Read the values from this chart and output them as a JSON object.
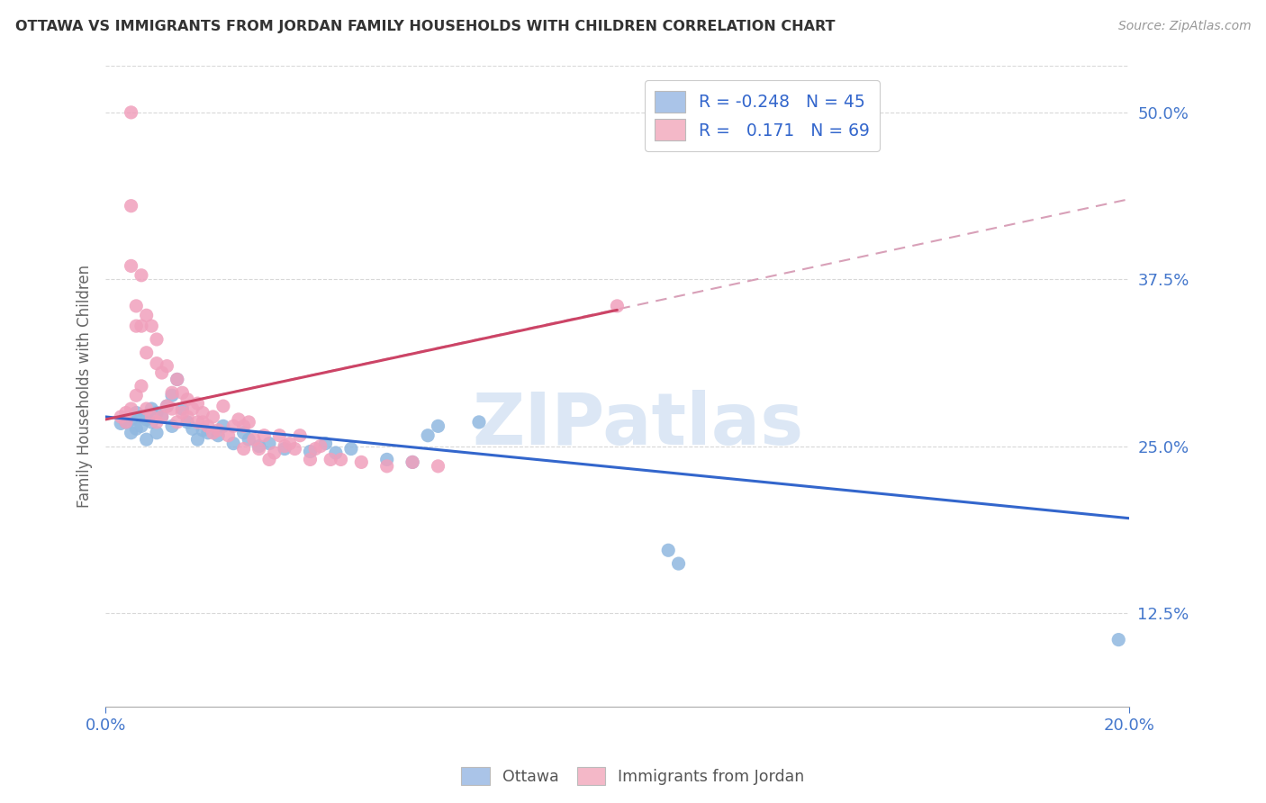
{
  "title": "OTTAWA VS IMMIGRANTS FROM JORDAN FAMILY HOUSEHOLDS WITH CHILDREN CORRELATION CHART",
  "source": "Source: ZipAtlas.com",
  "ylabel": "Family Households with Children",
  "xlim": [
    0.0,
    0.2
  ],
  "ylim": [
    0.055,
    0.535
  ],
  "ottawa_color": "#90b8e0",
  "jordan_color": "#f0a0bc",
  "trend_ottawa_color": "#3366cc",
  "trend_jordan_solid_color": "#cc4466",
  "trend_jordan_dashed_color": "#d8a0b8",
  "background_color": "#ffffff",
  "grid_color": "#d8d8d8",
  "ottawa_R": -0.248,
  "ottawa_N": 45,
  "jordan_R": 0.171,
  "jordan_N": 69,
  "trend_ottawa_x0": 0.0,
  "trend_ottawa_y0": 0.272,
  "trend_ottawa_x1": 0.2,
  "trend_ottawa_y1": 0.196,
  "trend_jordan_x0": 0.0,
  "trend_jordan_y0": 0.27,
  "trend_jordan_x1": 0.1,
  "trend_jordan_y1": 0.352,
  "trend_jordan_dashed_x0": 0.0,
  "trend_jordan_dashed_y0": 0.27,
  "trend_jordan_dashed_x1": 0.2,
  "trend_jordan_dashed_y1": 0.435,
  "ottawa_points": [
    [
      0.003,
      0.267
    ],
    [
      0.004,
      0.268
    ],
    [
      0.005,
      0.27
    ],
    [
      0.005,
      0.26
    ],
    [
      0.006,
      0.275
    ],
    [
      0.006,
      0.263
    ],
    [
      0.007,
      0.272
    ],
    [
      0.007,
      0.265
    ],
    [
      0.008,
      0.27
    ],
    [
      0.008,
      0.255
    ],
    [
      0.009,
      0.278
    ],
    [
      0.009,
      0.268
    ],
    [
      0.01,
      0.275
    ],
    [
      0.01,
      0.26
    ],
    [
      0.011,
      0.272
    ],
    [
      0.012,
      0.28
    ],
    [
      0.013,
      0.265
    ],
    [
      0.013,
      0.288
    ],
    [
      0.014,
      0.3
    ],
    [
      0.015,
      0.278
    ],
    [
      0.016,
      0.268
    ],
    [
      0.017,
      0.263
    ],
    [
      0.018,
      0.255
    ],
    [
      0.019,
      0.262
    ],
    [
      0.02,
      0.26
    ],
    [
      0.022,
      0.258
    ],
    [
      0.023,
      0.265
    ],
    [
      0.025,
      0.252
    ],
    [
      0.027,
      0.26
    ],
    [
      0.028,
      0.255
    ],
    [
      0.03,
      0.25
    ],
    [
      0.032,
      0.252
    ],
    [
      0.035,
      0.248
    ],
    [
      0.04,
      0.246
    ],
    [
      0.043,
      0.252
    ],
    [
      0.045,
      0.245
    ],
    [
      0.048,
      0.248
    ],
    [
      0.055,
      0.24
    ],
    [
      0.06,
      0.238
    ],
    [
      0.063,
      0.258
    ],
    [
      0.065,
      0.265
    ],
    [
      0.073,
      0.268
    ],
    [
      0.11,
      0.172
    ],
    [
      0.112,
      0.162
    ],
    [
      0.198,
      0.105
    ]
  ],
  "jordan_points": [
    [
      0.003,
      0.272
    ],
    [
      0.004,
      0.268
    ],
    [
      0.004,
      0.275
    ],
    [
      0.005,
      0.5
    ],
    [
      0.005,
      0.278
    ],
    [
      0.005,
      0.43
    ],
    [
      0.005,
      0.385
    ],
    [
      0.006,
      0.288
    ],
    [
      0.006,
      0.355
    ],
    [
      0.006,
      0.34
    ],
    [
      0.007,
      0.295
    ],
    [
      0.007,
      0.378
    ],
    [
      0.007,
      0.34
    ],
    [
      0.008,
      0.278
    ],
    [
      0.008,
      0.348
    ],
    [
      0.008,
      0.32
    ],
    [
      0.009,
      0.272
    ],
    [
      0.009,
      0.34
    ],
    [
      0.01,
      0.268
    ],
    [
      0.01,
      0.33
    ],
    [
      0.01,
      0.312
    ],
    [
      0.011,
      0.272
    ],
    [
      0.011,
      0.305
    ],
    [
      0.012,
      0.28
    ],
    [
      0.012,
      0.31
    ],
    [
      0.013,
      0.278
    ],
    [
      0.013,
      0.29
    ],
    [
      0.014,
      0.268
    ],
    [
      0.014,
      0.3
    ],
    [
      0.015,
      0.275
    ],
    [
      0.015,
      0.29
    ],
    [
      0.016,
      0.272
    ],
    [
      0.016,
      0.285
    ],
    [
      0.017,
      0.278
    ],
    [
      0.018,
      0.268
    ],
    [
      0.018,
      0.282
    ],
    [
      0.019,
      0.268
    ],
    [
      0.019,
      0.275
    ],
    [
      0.02,
      0.265
    ],
    [
      0.021,
      0.272
    ],
    [
      0.021,
      0.26
    ],
    [
      0.022,
      0.262
    ],
    [
      0.023,
      0.28
    ],
    [
      0.024,
      0.258
    ],
    [
      0.025,
      0.265
    ],
    [
      0.026,
      0.27
    ],
    [
      0.027,
      0.265
    ],
    [
      0.027,
      0.248
    ],
    [
      0.028,
      0.268
    ],
    [
      0.029,
      0.255
    ],
    [
      0.03,
      0.248
    ],
    [
      0.031,
      0.258
    ],
    [
      0.032,
      0.24
    ],
    [
      0.033,
      0.245
    ],
    [
      0.034,
      0.258
    ],
    [
      0.035,
      0.25
    ],
    [
      0.036,
      0.252
    ],
    [
      0.037,
      0.248
    ],
    [
      0.038,
      0.258
    ],
    [
      0.04,
      0.24
    ],
    [
      0.041,
      0.248
    ],
    [
      0.042,
      0.25
    ],
    [
      0.044,
      0.24
    ],
    [
      0.046,
      0.24
    ],
    [
      0.05,
      0.238
    ],
    [
      0.055,
      0.235
    ],
    [
      0.06,
      0.238
    ],
    [
      0.065,
      0.235
    ],
    [
      0.1,
      0.355
    ]
  ],
  "watermark_text": "ZIPatlas",
  "watermark_color": "#c5d8ef",
  "legend_label_1": "R = -0.248   N = 45",
  "legend_label_2": "R =   0.171   N = 69",
  "legend_patch_color_1": "#aac4e8",
  "legend_patch_color_2": "#f4b8c8",
  "bottom_legend_1": "Ottawa",
  "bottom_legend_2": "Immigrants from Jordan"
}
